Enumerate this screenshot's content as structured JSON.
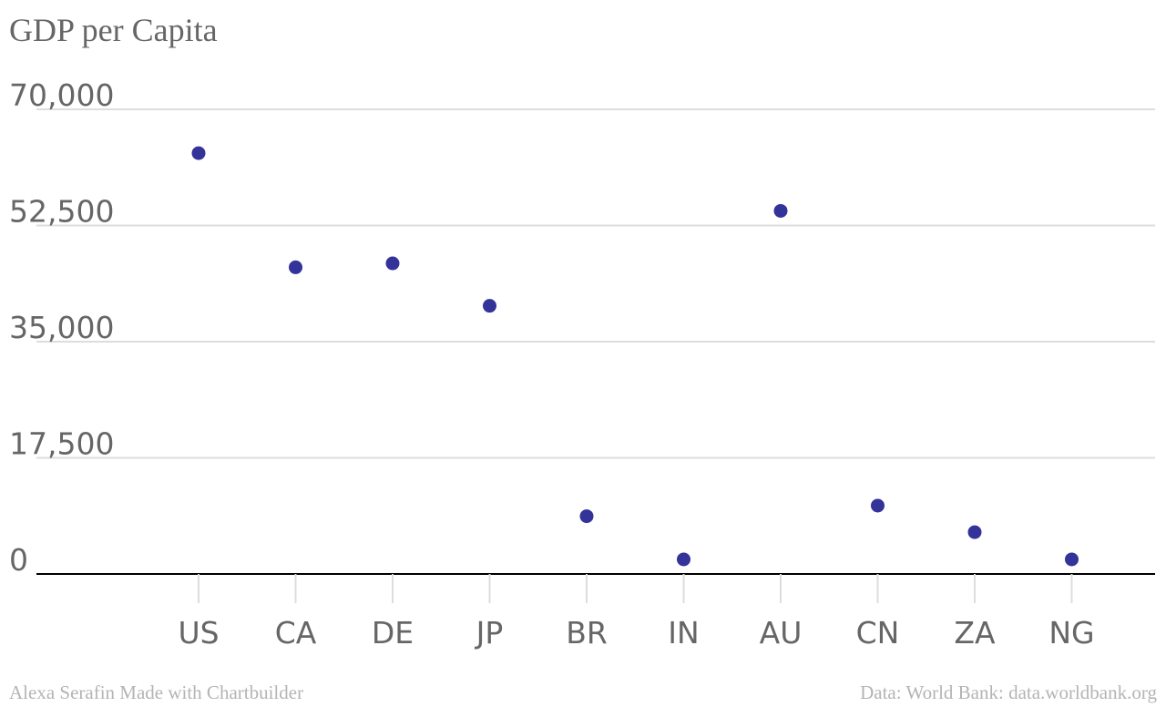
{
  "chart_data": {
    "type": "scatter",
    "title": "GDP per Capita",
    "xlabel": "",
    "ylabel": "",
    "categories": [
      "US",
      "CA",
      "DE",
      "JP",
      "BR",
      "IN",
      "AU",
      "CN",
      "ZA",
      "NG"
    ],
    "values": [
      63400,
      46200,
      46800,
      40400,
      8700,
      2200,
      54700,
      10300,
      6300,
      2200
    ],
    "ylim": [
      0,
      70000
    ],
    "yticks": [
      "0",
      "17,500",
      "35,000",
      "52,500",
      "70,000"
    ],
    "ytick_values": [
      0,
      17500,
      35000,
      52500,
      70000
    ],
    "grid": true,
    "legend": "none",
    "marker_color": "#333399",
    "grid_color": "#dddddd",
    "axis_color": "#000000",
    "text_color": "#666666"
  },
  "footer": {
    "credit_left": "Alexa Serafin Made with Chartbuilder",
    "credit_right": "Data: World Bank: data.worldbank.org"
  }
}
